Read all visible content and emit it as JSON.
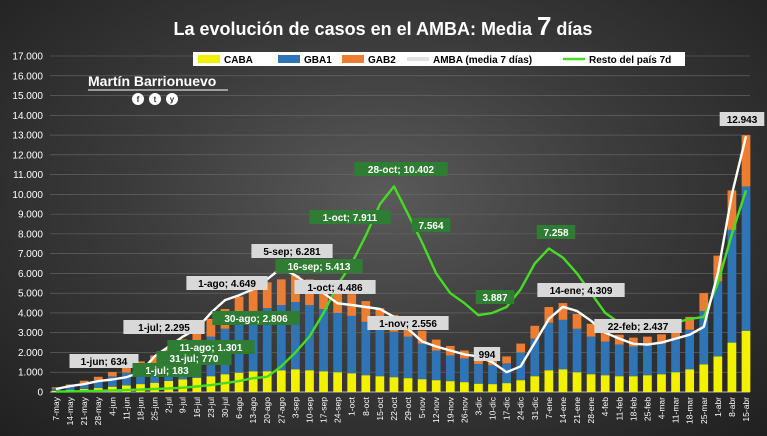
{
  "title_main": "La evolución  de casos  en el AMBA: Media ",
  "title_big": "7",
  "title_end": " días",
  "author": "Martín Barrionuevo",
  "social": [
    "f",
    "t",
    "y"
  ],
  "colors": {
    "caba": "#f2f200",
    "gba1": "#2f75b5",
    "gba2": "#ed7d31",
    "amba": "#ffffff",
    "resto": "#44dd22",
    "green_box": "#2e7d32",
    "grey_box": "#d9d9d9"
  },
  "chart_data": {
    "type": "bar",
    "title": "La evolución de casos en el AMBA: Media 7 días",
    "ylim": [
      0,
      17000
    ],
    "yticks": [
      "0",
      "1.000",
      "2.000",
      "3.000",
      "4.000",
      "5.000",
      "6.000",
      "7.000",
      "8.000",
      "9.000",
      "10.000",
      "11.000",
      "12.000",
      "13.000",
      "14.000",
      "15.000",
      "16.000",
      "17.000"
    ],
    "x_labels": [
      "7-may",
      "14-may",
      "21-may",
      "28-may",
      "4-jun",
      "11-jun",
      "18-jun",
      "25-jun",
      "2-jul",
      "9-jul",
      "16-jul",
      "23-jul",
      "30-jul",
      "6-ago",
      "13-ago",
      "20-ago",
      "27-ago",
      "3-sep",
      "10-sep",
      "17-sep",
      "24-sep",
      "1-oct",
      "8-oct",
      "15-oct",
      "22-oct",
      "29-oct",
      "5-nov",
      "12-nov",
      "19-nov",
      "26-nov",
      "3-dic",
      "10-dic",
      "17-dic",
      "24-dic",
      "31-dic",
      "7-ene",
      "14-ene",
      "21-ene",
      "28-ene",
      "4-feb",
      "11-feb",
      "18-feb",
      "25-feb",
      "4-mar",
      "11-mar",
      "18-mar",
      "25-mar",
      "1-abr",
      "8-abr",
      "15-abr"
    ],
    "legend": [
      "CABA",
      "GBA1",
      "GAB2",
      "AMBA (media 7 días)",
      "Resto del país 7d"
    ],
    "series": [
      {
        "name": "CABA",
        "values": [
          60,
          100,
          150,
          200,
          270,
          330,
          400,
          470,
          560,
          640,
          720,
          800,
          900,
          980,
          1050,
          1050,
          1100,
          1150,
          1100,
          1050,
          1000,
          950,
          850,
          800,
          750,
          700,
          650,
          600,
          550,
          500,
          420,
          400,
          450,
          600,
          800,
          1100,
          1150,
          1000,
          900,
          850,
          800,
          800,
          850,
          900,
          1000,
          1150,
          1400,
          1800,
          2500,
          3100
        ]
      },
      {
        "name": "GBA1",
        "values": [
          120,
          200,
          300,
          400,
          520,
          650,
          800,
          950,
          1150,
          1400,
          1700,
          2000,
          2300,
          2700,
          3000,
          3200,
          3300,
          3400,
          3300,
          3150,
          3000,
          2900,
          2700,
          2500,
          2300,
          2100,
          1800,
          1500,
          1300,
          1200,
          1000,
          950,
          1000,
          1400,
          1900,
          2400,
          2500,
          2200,
          1900,
          1700,
          1600,
          1500,
          1500,
          1550,
          1700,
          2000,
          2700,
          3800,
          5700,
          7300
        ]
      },
      {
        "name": "GAB2",
        "values": [
          60,
          80,
          120,
          170,
          220,
          280,
          350,
          430,
          520,
          620,
          750,
          900,
          1000,
          1150,
          1250,
          1300,
          1300,
          1350,
          1300,
          1250,
          1200,
          1100,
          1050,
          950,
          850,
          750,
          650,
          550,
          480,
          400,
          350,
          300,
          350,
          450,
          650,
          800,
          850,
          750,
          650,
          550,
          500,
          450,
          450,
          470,
          550,
          650,
          900,
          1300,
          2000,
          2600
        ]
      },
      {
        "name": "AMBA (media 7 días)",
        "values": [
          150,
          300,
          400,
          550,
          634,
          750,
          1000,
          1800,
          2295,
          2800,
          3200,
          4000,
          4649,
          4900,
          5200,
          5700,
          6281,
          5900,
          5400,
          5000,
          4486,
          4400,
          4300,
          4200,
          3800,
          3200,
          2556,
          2300,
          2100,
          1900,
          1800,
          1500,
          1000,
          1300,
          2500,
          3700,
          4309,
          4100,
          3600,
          3000,
          2700,
          2437,
          2400,
          2500,
          2700,
          2900,
          3300,
          6000,
          10000,
          12943
        ]
      },
      {
        "name": "Resto del país 7d",
        "values": [
          20,
          30,
          40,
          60,
          80,
          100,
          120,
          150,
          183,
          220,
          280,
          350,
          450,
          550,
          700,
          770,
          1301,
          2000,
          2806,
          4000,
          5413,
          6500,
          7911,
          9500,
          10402,
          9000,
          7564,
          6000,
          5000,
          4500,
          3887,
          4000,
          4300,
          5200,
          6500,
          7258,
          6800,
          6000,
          5000,
          4000,
          3500,
          3400,
          3300,
          3300,
          3500,
          3700,
          3800,
          5500,
          8000,
          10200
        ]
      }
    ],
    "annotations": [
      {
        "text": "1-jun; 634",
        "style": "grey"
      },
      {
        "text": "1-jul; 2.295",
        "style": "grey"
      },
      {
        "text": "1-jul; 183",
        "style": "green"
      },
      {
        "text": "31-jul; 770",
        "style": "green"
      },
      {
        "text": "11-ago; 1.301",
        "style": "green"
      },
      {
        "text": "30-ago; 2.806",
        "style": "green"
      },
      {
        "text": "1-ago; 4.649",
        "style": "grey"
      },
      {
        "text": "5-sep; 6.281",
        "style": "grey"
      },
      {
        "text": "16-sep; 5.413",
        "style": "green"
      },
      {
        "text": "1-oct; 4.486",
        "style": "grey"
      },
      {
        "text": "1-oct; 7.911",
        "style": "green"
      },
      {
        "text": "28-oct; 10.402",
        "style": "green"
      },
      {
        "text": "7.564",
        "style": "green"
      },
      {
        "text": "1-nov; 2.556",
        "style": "grey"
      },
      {
        "text": "3.887",
        "style": "green"
      },
      {
        "text": "994",
        "style": "grey"
      },
      {
        "text": "7.258",
        "style": "green"
      },
      {
        "text": "14-ene; 4.309",
        "style": "grey"
      },
      {
        "text": "22-feb; 2.437",
        "style": "grey"
      },
      {
        "text": "12.943",
        "style": "grey"
      }
    ]
  }
}
